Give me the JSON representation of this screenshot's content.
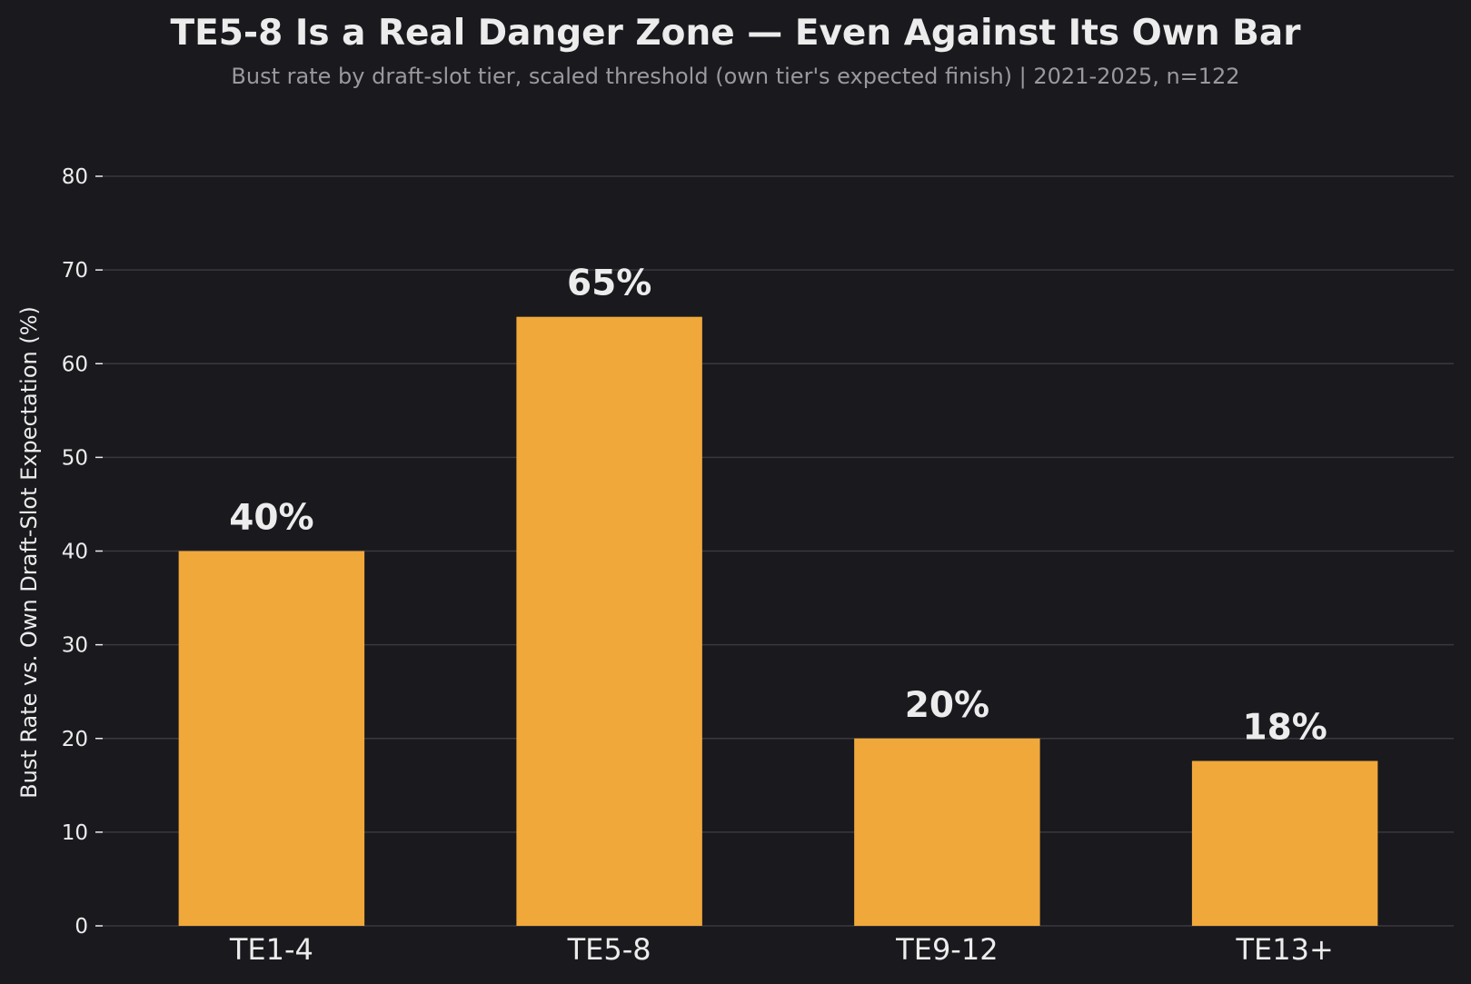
{
  "chart_data": {
    "type": "bar",
    "title": "TE5-8 Is a Real Danger Zone — Even Against Its Own Bar",
    "subtitle": "Bust rate by draft-slot tier, scaled threshold (own tier's expected finish) | 2021-2025, n=122",
    "xlabel": "",
    "ylabel": "Bust Rate vs. Own Draft-Slot Expectation (%)",
    "categories": [
      "TE1-4",
      "TE5-8",
      "TE9-12",
      "TE13+"
    ],
    "values": [
      40,
      65,
      20,
      17.6
    ],
    "data_labels": [
      "40%",
      "65%",
      "20%",
      "18%"
    ],
    "ylim": [
      0,
      80
    ],
    "yticks": [
      0,
      10,
      20,
      30,
      40,
      50,
      60,
      70,
      80
    ],
    "grid": true,
    "legend": "none",
    "colors": {
      "background": "#1a191e",
      "bar": "#f0a83b",
      "grid": "#3a393e",
      "text": "#ececec",
      "subtitle": "#9a9a9e"
    }
  }
}
